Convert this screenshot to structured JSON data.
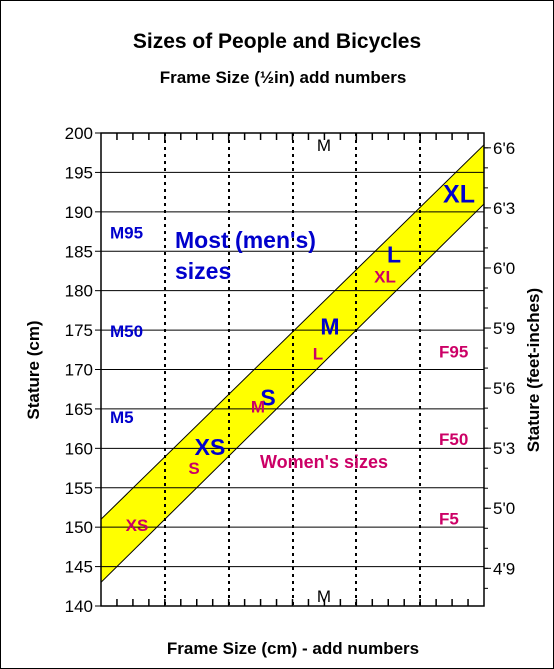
{
  "chart_data": {
    "type": "area",
    "title": "Sizes of People and Bicycles",
    "subtitle": "Frame Size (½in) add numbers",
    "xlabel": "Frame Size (cm) - add numbers",
    "ylabel": "Stature (cm)",
    "ylabel_right": "Stature (feet-inches)",
    "ylim": [
      140,
      200
    ],
    "y_ticks": [
      "140",
      "145",
      "150",
      "155",
      "160",
      "165",
      "170",
      "175",
      "180",
      "185",
      "190",
      "195",
      "200"
    ],
    "right_ticks": [
      "4'9",
      "5'0",
      "5'3",
      "5'6",
      "5'9",
      "6'0",
      "6'3",
      "6'6"
    ],
    "grid": true,
    "band": {
      "color": "#ffff00",
      "upper_start_y": 151.0,
      "upper_end_y": 198.5,
      "lower_start_y": 143.0,
      "lower_end_y": 191.0
    },
    "top_marker": "M",
    "bottom_marker": "M",
    "men_sizes": [
      {
        "label": "XS",
        "stature": 160.2
      },
      {
        "label": "S",
        "stature": 166.5
      },
      {
        "label": "M",
        "stature": 175.5
      },
      {
        "label": "L",
        "stature": 184.6
      },
      {
        "label": "XL",
        "stature": 192.3
      }
    ],
    "women_sizes": [
      {
        "label": "XS",
        "stature": 150.3
      },
      {
        "label": "S",
        "stature": 157.5
      },
      {
        "label": "M",
        "stature": 165.3
      },
      {
        "label": "L",
        "stature": 172.0
      },
      {
        "label": "XL",
        "stature": 181.8
      }
    ],
    "men_percentiles": [
      {
        "label": "M95",
        "stature": 187.4
      },
      {
        "label": "M50",
        "stature": 174.9
      },
      {
        "label": "M5",
        "stature": 164.0
      }
    ],
    "women_percentiles": [
      {
        "label": "F95",
        "stature": 172.3
      },
      {
        "label": "F50",
        "stature": 161.2
      },
      {
        "label": "F5",
        "stature": 151.1
      }
    ],
    "annotations": {
      "men_note_line1": "Most (men's)",
      "men_note_line2": "sizes",
      "women_note": "Women's sizes"
    },
    "colors": {
      "men": "#0000cc",
      "women": "#cc0066",
      "band": "#ffff00",
      "axis": "#000000"
    }
  }
}
